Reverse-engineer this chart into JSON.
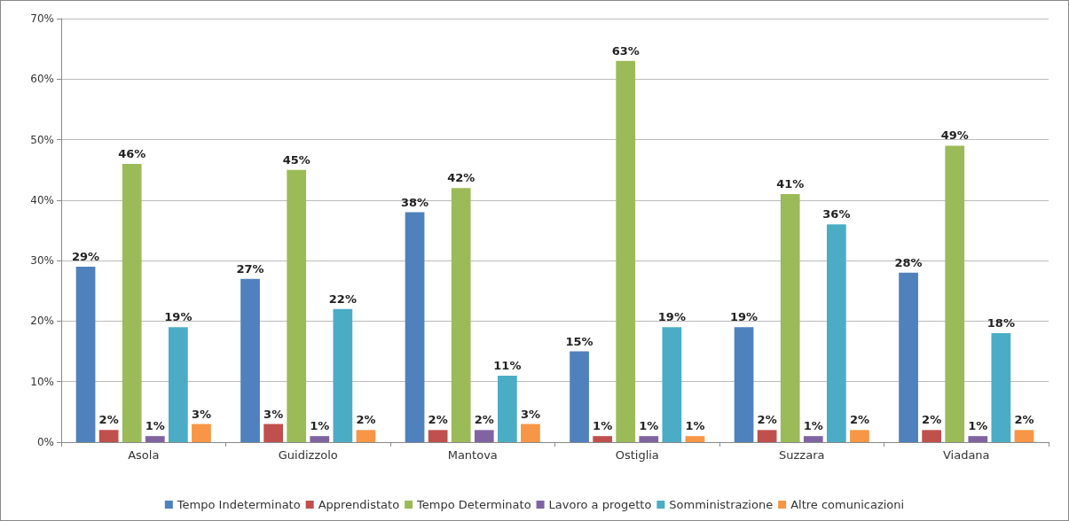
{
  "chart_data": {
    "type": "bar",
    "categories": [
      "Asola",
      "Guidizzolo",
      "Mantova",
      "Ostiglia",
      "Suzzara",
      "Viadana"
    ],
    "series": [
      {
        "name": "Tempo Indeterminato",
        "color": "#4f81bd",
        "values": [
          29,
          27,
          38,
          15,
          19,
          28
        ],
        "value_labels": [
          "29%",
          "27%",
          "38%",
          "15%",
          "19%",
          "28%"
        ]
      },
      {
        "name": "Apprendistato",
        "color": "#c0504d",
        "values": [
          2,
          3,
          2,
          1,
          2,
          2
        ],
        "value_labels": [
          "2%",
          "3%",
          "2%",
          "1%",
          "2%",
          "2%"
        ]
      },
      {
        "name": "Tempo Determinato",
        "color": "#9bbb59",
        "values": [
          46,
          45,
          42,
          63,
          41,
          49
        ],
        "value_labels": [
          "46%",
          "45%",
          "42%",
          "63%",
          "41%",
          "49%"
        ]
      },
      {
        "name": "Lavoro a progetto",
        "color": "#8064a2",
        "values": [
          1,
          1,
          2,
          1,
          1,
          1
        ],
        "value_labels": [
          "1%",
          "1%",
          "2%",
          "1%",
          "1%",
          "1%"
        ]
      },
      {
        "name": "Somministrazione",
        "color": "#4bacc6",
        "values": [
          19,
          22,
          11,
          19,
          36,
          18
        ],
        "value_labels": [
          "19%",
          "22%",
          "11%",
          "19%",
          "36%",
          "18%"
        ]
      },
      {
        "name": "Altre comunicazioni",
        "color": "#f79646",
        "values": [
          3,
          2,
          3,
          1,
          2,
          2
        ],
        "value_labels": [
          "3%",
          "2%",
          "3%",
          "1%",
          "2%",
          "2%"
        ]
      }
    ],
    "ylim": [
      0,
      70
    ],
    "yticks": [
      {
        "value": 0,
        "label": "0%"
      },
      {
        "value": 10,
        "label": "10%"
      },
      {
        "value": 20,
        "label": "20%"
      },
      {
        "value": 30,
        "label": "30%"
      },
      {
        "value": 40,
        "label": "40%"
      },
      {
        "value": 50,
        "label": "50%"
      },
      {
        "value": 60,
        "label": "60%"
      },
      {
        "value": 70,
        "label": "70%"
      }
    ],
    "grid": "y",
    "legend": "bottom"
  }
}
